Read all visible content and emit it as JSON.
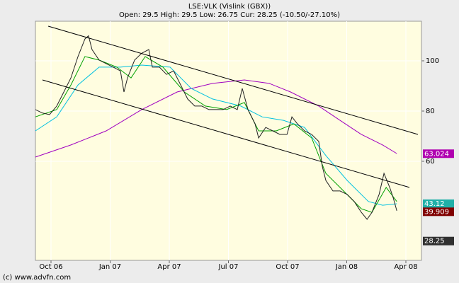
{
  "chart_data": {
    "type": "line",
    "title": "LSE:VLK (Vislink (GBX))",
    "subtitle": "Open: 29.5 High: 29.5 Low: 26.75 Cur: 28.25 (-10.50/-27.10%)",
    "credit": "(c) www.advfn.com",
    "xlim": [
      8.21,
      27.79
    ],
    "ylim": [
      20.56,
      115.77
    ],
    "xticks": [
      {
        "value": 9,
        "label": "Oct 06"
      },
      {
        "value": 12,
        "label": "Jan 07"
      },
      {
        "value": 15,
        "label": "Apr 07"
      },
      {
        "value": 18,
        "label": "Jul 07"
      },
      {
        "value": 21,
        "label": "Oct 07"
      },
      {
        "value": 24,
        "label": "Jan 08"
      },
      {
        "value": 27,
        "label": "Apr 08"
      }
    ],
    "yticks": [
      60,
      80,
      100
    ],
    "grid": true,
    "series": [
      {
        "color": "#a000c0",
        "x": [
          8.21,
          10.01,
          11.8,
          13.6,
          15.4,
          17.19,
          18.81,
          20.07,
          21.15,
          22.58,
          23.66,
          24.74,
          25.82,
          26.54
        ],
        "values": [
          61.7,
          66.5,
          72.1,
          80.6,
          87.6,
          91,
          92.4,
          91,
          87.6,
          82,
          76.3,
          70.7,
          66.5,
          63.1
        ]
      },
      {
        "color": "#00c0e0",
        "x": [
          8.21,
          9.29,
          10.37,
          11.44,
          12.52,
          13.6,
          15.04,
          16.11,
          17.19,
          18.63,
          19.71,
          20.79,
          21.86,
          22.94,
          24.02,
          25.1,
          25.82,
          26.54
        ],
        "values": [
          72.1,
          77.7,
          90.4,
          97.5,
          97.5,
          98.3,
          97.5,
          89,
          84.8,
          82,
          77.7,
          76.3,
          73.5,
          62.3,
          52.4,
          44,
          42.5,
          43.1
        ]
      },
      {
        "color": "#00a000",
        "x": [
          8.21,
          9.29,
          10.01,
          10.72,
          11.44,
          12.34,
          13.06,
          13.78,
          14.68,
          15.76,
          16.83,
          17.91,
          18.81,
          19.53,
          20.43,
          21.32,
          22.22,
          22.94,
          23.66,
          24.74,
          25.28,
          26.0,
          26.54
        ],
        "values": [
          77.7,
          80.6,
          90.4,
          101.7,
          100.3,
          97.5,
          93.2,
          101.7,
          97.5,
          87.6,
          82,
          80.6,
          83.4,
          72.1,
          72.1,
          74.9,
          69.3,
          55.2,
          49.6,
          41.1,
          39.7,
          49.6,
          44
        ]
      },
      {
        "color": "#222222",
        "x": [
          8.21,
          8.57,
          8.93,
          9.29,
          9.65,
          10.01,
          10.37,
          10.72,
          10.9,
          11.08,
          11.44,
          11.8,
          12.16,
          12.52,
          12.7,
          12.88,
          13.24,
          13.6,
          13.96,
          14.14,
          14.5,
          14.86,
          15.22,
          15.58,
          15.93,
          16.29,
          16.65,
          17.01,
          17.37,
          17.73,
          18.09,
          18.45,
          18.7,
          18.99,
          19.35,
          19.53,
          19.89,
          20.25,
          20.61,
          20.97,
          21.22,
          21.5,
          21.86,
          22.22,
          22.58,
          22.76,
          22.94,
          23.3,
          23.66,
          24.02,
          24.38,
          24.74,
          25.03,
          25.28,
          25.64,
          25.89,
          26.18,
          26.36,
          26.54
        ],
        "values": [
          80.6,
          79.2,
          78.6,
          82,
          87.6,
          93.2,
          101.7,
          108.7,
          110,
          104.5,
          100.3,
          98.9,
          97.5,
          96,
          87.6,
          93.2,
          100.3,
          103,
          104.5,
          97.5,
          97.5,
          94.6,
          96,
          90.4,
          84.8,
          82,
          82,
          80.6,
          80.6,
          80.6,
          82,
          80.6,
          89,
          80.6,
          74.9,
          69.3,
          73.5,
          72.1,
          70.7,
          70.7,
          77.7,
          74.9,
          72.1,
          70.7,
          67.9,
          58,
          52.4,
          48.2,
          48.2,
          46.8,
          44,
          39.7,
          36.9,
          39.7,
          46.8,
          55.2,
          49.6,
          45.4,
          40.3
        ]
      },
      {
        "color": "#000000",
        "x": [
          8.86,
          27.61
        ],
        "values": [
          113.8,
          70.7
        ]
      },
      {
        "color": "#000000",
        "x": [
          8.57,
          27.18
        ],
        "values": [
          92.4,
          49.6
        ]
      }
    ],
    "value_tags": [
      {
        "value": 63.024,
        "color": "#b000b0"
      },
      {
        "value": 43.12,
        "color": "#20b0a8"
      },
      {
        "value": 39.909,
        "color": "#800000"
      },
      {
        "value": 28.25,
        "color": "#303030"
      }
    ]
  }
}
